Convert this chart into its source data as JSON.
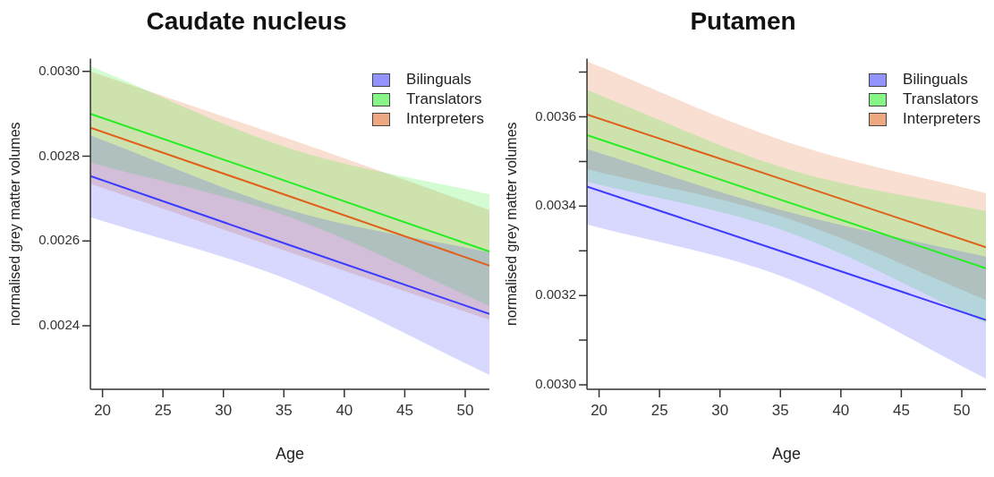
{
  "chart_data": [
    {
      "type": "line",
      "title": "Caudate nucleus",
      "xlabel": "Age",
      "ylabel": "normalised grey matter volumes",
      "legend": "top right",
      "x": [
        19,
        35.5,
        52
      ],
      "xlim": [
        19,
        52
      ],
      "xticks": [
        20,
        25,
        30,
        35,
        40,
        45,
        50
      ],
      "ylim": [
        0.00225,
        0.00303
      ],
      "yticks": [
        0.0024,
        0.0026,
        0.0028,
        {
          "value": 0.003,
          "label": "0.0030"
        }
      ],
      "series": [
        {
          "name": "Bilinguals",
          "color": "#3b3bff",
          "values": [
            0.002753,
            0.00259,
            0.002428
          ],
          "lower": [
            0.002656,
            0.002507,
            0.002284
          ],
          "upper": [
            0.002849,
            0.002673,
            0.002573
          ]
        },
        {
          "name": "Translators",
          "color": "#22ee22",
          "values": [
            0.0029,
            0.002738,
            0.002575
          ],
          "lower": [
            0.002784,
            0.002656,
            0.002447
          ],
          "upper": [
            0.003013,
            0.002818,
            0.00271
          ]
        },
        {
          "name": "Interpreters",
          "color": "#e0601a",
          "values": [
            0.002867,
            0.002705,
            0.002542
          ],
          "lower": [
            0.002735,
            0.002573,
            0.002414
          ],
          "upper": [
            0.003,
            0.00284,
            0.002673
          ]
        }
      ]
    },
    {
      "type": "line",
      "title": "Putamen",
      "xlabel": "Age",
      "ylabel": "normalised grey matter volumes",
      "legend": "top right",
      "x": [
        19,
        35.5,
        52
      ],
      "xlim": [
        19,
        52
      ],
      "xticks": [
        20,
        25,
        30,
        35,
        40,
        45,
        50
      ],
      "ylim": [
        0.00299,
        0.00373
      ],
      "yticks": [
        {
          "value": 0.003,
          "label": "0.0030"
        },
        {
          "value": 0.0031,
          "label": null
        },
        0.0032,
        {
          "value": 0.0033,
          "label": null
        },
        0.0034,
        {
          "value": 0.0035,
          "label": null
        },
        0.0036,
        {
          "value": 0.0037,
          "label": null
        }
      ],
      "series": [
        {
          "name": "Bilinguals",
          "color": "#3b3bff",
          "values": [
            0.003444,
            0.003295,
            0.003145
          ],
          "lower": [
            0.003359,
            0.003239,
            0.003014
          ],
          "upper": [
            0.003528,
            0.003388,
            0.003287
          ]
        },
        {
          "name": "Translators",
          "color": "#22ee22",
          "values": [
            0.003559,
            0.00341,
            0.003261
          ],
          "lower": [
            0.003455,
            0.003343,
            0.003138
          ],
          "upper": [
            0.00366,
            0.003484,
            0.003389
          ]
        },
        {
          "name": "Interpreters",
          "color": "#e0601a",
          "values": [
            0.003605,
            0.003457,
            0.003308
          ],
          "lower": [
            0.003483,
            0.003373,
            0.00319
          ],
          "upper": [
            0.003724,
            0.003544,
            0.003429
          ]
        }
      ]
    }
  ]
}
